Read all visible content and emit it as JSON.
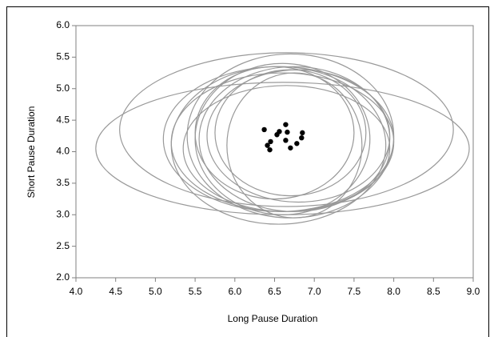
{
  "chart_data": {
    "type": "scatter",
    "x_label": "Long Pause Duration",
    "y_label": "Short Pause Duration",
    "xlim": [
      4,
      9
    ],
    "ylim": [
      2,
      6
    ],
    "xticks": [
      {
        "value": 4,
        "label": "4.0"
      },
      {
        "value": 4.5,
        "label": "4.5"
      },
      {
        "value": 5,
        "label": "5.0"
      },
      {
        "value": 5.5,
        "label": "5.5"
      },
      {
        "value": 6,
        "label": "6.0"
      },
      {
        "value": 6.5,
        "label": "6.5"
      },
      {
        "value": 7,
        "label": "7.0"
      },
      {
        "value": 7.5,
        "label": "7.5"
      },
      {
        "value": 8,
        "label": "8.0"
      },
      {
        "value": 8.5,
        "label": "8.5"
      },
      {
        "value": 9,
        "label": "9.0"
      }
    ],
    "yticks": [
      {
        "value": 2,
        "label": "2.0"
      },
      {
        "value": 2.5,
        "label": "2.5"
      },
      {
        "value": 3,
        "label": "3.0"
      },
      {
        "value": 3.5,
        "label": "3.5"
      },
      {
        "value": 4,
        "label": "4.0"
      },
      {
        "value": 4.5,
        "label": "4.5"
      },
      {
        "value": 5,
        "label": "5.0"
      },
      {
        "value": 5.5,
        "label": "5.5"
      },
      {
        "value": 6,
        "label": "6.0"
      }
    ],
    "grid": false,
    "point_color": "#000000",
    "ellipse_color": "#999999",
    "x": [
      6.37,
      6.41,
      6.44,
      6.45,
      6.53,
      6.56,
      6.64,
      6.66,
      6.64,
      6.7,
      6.78,
      6.85,
      6.84
    ],
    "y": [
      4.35,
      4.1,
      4.03,
      4.16,
      4.27,
      4.32,
      4.43,
      4.31,
      4.18,
      4.06,
      4.13,
      4.3,
      4.22
    ],
    "ellipses": [
      {
        "cx": 6.6,
        "cy": 4.05,
        "rx": 2.35,
        "ry": 1.05
      },
      {
        "cx": 6.65,
        "cy": 4.35,
        "rx": 2.1,
        "ry": 1.22
      },
      {
        "cx": 6.55,
        "cy": 4.2,
        "rx": 1.45,
        "ry": 1.15
      },
      {
        "cx": 6.7,
        "cy": 4.25,
        "rx": 1.3,
        "ry": 1.3
      },
      {
        "cx": 6.6,
        "cy": 4.15,
        "rx": 1.4,
        "ry": 1.1
      },
      {
        "cx": 6.75,
        "cy": 4.2,
        "rx": 1.2,
        "ry": 1.15
      },
      {
        "cx": 6.5,
        "cy": 4.3,
        "rx": 1.0,
        "ry": 1.05
      },
      {
        "cx": 6.75,
        "cy": 4.1,
        "rx": 0.85,
        "ry": 1.15
      },
      {
        "cx": 6.6,
        "cy": 4.2,
        "rx": 1.1,
        "ry": 1.2
      },
      {
        "cx": 6.65,
        "cy": 4.05,
        "rx": 1.3,
        "ry": 1.0
      },
      {
        "cx": 6.7,
        "cy": 4.3,
        "rx": 0.95,
        "ry": 1.0
      },
      {
        "cx": 6.55,
        "cy": 4.1,
        "rx": 1.35,
        "ry": 1.25
      },
      {
        "cx": 6.8,
        "cy": 4.25,
        "rx": 1.15,
        "ry": 1.05
      }
    ]
  }
}
